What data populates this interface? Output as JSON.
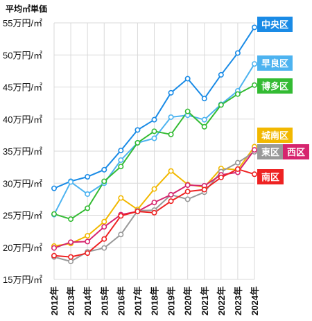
{
  "chart_data": {
    "type": "line",
    "ylabel": "平均㎡単価",
    "ylim": [
      15,
      55
    ],
    "y_ticks": [
      "15万円/㎡",
      "20万円/㎡",
      "25万円/㎡",
      "30万円/㎡",
      "35万円/㎡",
      "40万円/㎡",
      "45万円/㎡",
      "50万円/㎡",
      "55万円/㎡"
    ],
    "y_tick_values": [
      15,
      20,
      25,
      30,
      35,
      40,
      45,
      50,
      55
    ],
    "categories": [
      "2012年",
      "2013年",
      "2014年",
      "2015年",
      "2016年",
      "2017年",
      "2018年",
      "2019年",
      "2020年",
      "2021年",
      "2022年",
      "2023年",
      "2024年"
    ],
    "grid": true,
    "series": [
      {
        "name": "中央区",
        "color": "#1a8be6",
        "values": [
          29.2,
          30.3,
          31.0,
          32.1,
          35.1,
          38.3,
          39.9,
          44.1,
          46.3,
          43.2,
          46.9,
          50.3,
          54.3
        ]
      },
      {
        "name": "早良区",
        "color": "#4db3f0",
        "values": [
          25.1,
          30.2,
          28.3,
          30.0,
          33.6,
          36.3,
          37.0,
          40.3,
          40.6,
          39.9,
          42.3,
          44.4,
          48.6
        ]
      },
      {
        "name": "博多区",
        "color": "#33bb33",
        "values": [
          25.2,
          24.4,
          26.1,
          30.3,
          32.6,
          36.3,
          38.1,
          37.6,
          41.2,
          38.8,
          42.2,
          43.9,
          45.3
        ]
      },
      {
        "name": "城南区",
        "color": "#f2b800",
        "values": [
          20.2,
          20.6,
          21.8,
          24.0,
          27.7,
          25.9,
          29.1,
          31.9,
          29.8,
          29.4,
          32.3,
          32.1,
          35.7
        ]
      },
      {
        "name": "東区",
        "color": "#999999",
        "values": [
          18.5,
          17.8,
          19.3,
          19.9,
          22.0,
          25.7,
          25.8,
          28.2,
          27.5,
          28.6,
          31.8,
          33.2,
          34.9
        ]
      },
      {
        "name": "西区",
        "color": "#d6246e",
        "values": [
          19.9,
          20.8,
          20.9,
          23.2,
          25.1,
          25.6,
          27.0,
          28.2,
          29.7,
          29.6,
          31.3,
          31.7,
          35.2
        ]
      },
      {
        "name": "南区",
        "color": "#ee2222",
        "values": [
          18.7,
          18.5,
          19.1,
          21.3,
          24.9,
          25.6,
          25.4,
          27.2,
          28.7,
          29.0,
          30.9,
          32.2,
          31.4
        ]
      }
    ]
  }
}
